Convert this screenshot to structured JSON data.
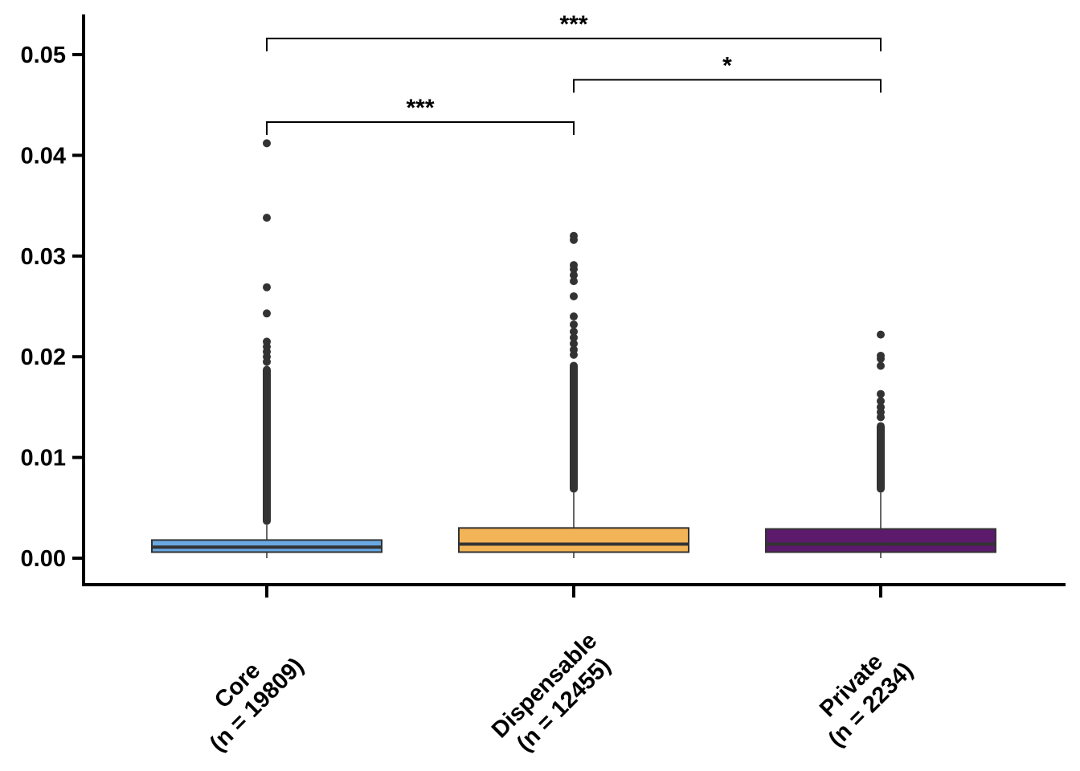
{
  "chart_data": {
    "type": "box",
    "title": "",
    "xlabel": "",
    "ylabel": "",
    "ylim": [
      -0.0025,
      0.0535
    ],
    "yticks": [
      "0.00",
      "0.01",
      "0.02",
      "0.03",
      "0.04",
      "0.05"
    ],
    "ytick_values": [
      0,
      0.01,
      0.02,
      0.03,
      0.04,
      0.05
    ],
    "grid": false,
    "legend": "none",
    "categories": [
      [
        "Core",
        "(n = 19809)"
      ],
      [
        "Dispensable",
        "(n = 12455)"
      ],
      [
        "Private",
        "(n = 2234)"
      ]
    ],
    "boxes": [
      {
        "color": "#69a8e3",
        "whisker_low": 0.0,
        "q1": 0.0006,
        "median": 0.0011,
        "q3": 0.0018,
        "whisker_high": 0.0033,
        "outliers_range": [
          0.0033,
          0.0191
        ],
        "outliers": [
          0.0195,
          0.02,
          0.0205,
          0.021,
          0.0215,
          0.0243,
          0.0269,
          0.0338,
          0.0412
        ]
      },
      {
        "color": "#f2b457",
        "whisker_low": 0.0,
        "q1": 0.0006,
        "median": 0.0014,
        "q3": 0.003,
        "whisker_high": 0.0065,
        "outliers_range": [
          0.0065,
          0.0195
        ],
        "outliers": [
          0.0202,
          0.0207,
          0.0213,
          0.0219,
          0.0225,
          0.0232,
          0.024,
          0.026,
          0.0275,
          0.0281,
          0.0287,
          0.0291,
          0.0316,
          0.032
        ]
      },
      {
        "color": "#5b1a6b",
        "whisker_low": 0.0,
        "q1": 0.0006,
        "median": 0.0014,
        "q3": 0.0029,
        "whisker_high": 0.0065,
        "outliers_range": [
          0.0065,
          0.0135
        ],
        "outliers": [
          0.014,
          0.0145,
          0.015,
          0.0156,
          0.0163,
          0.0191,
          0.0198,
          0.0201,
          0.0222
        ]
      }
    ],
    "significance": [
      {
        "from": 0,
        "to": 1,
        "label": "***",
        "y": 0.0433
      },
      {
        "from": 1,
        "to": 2,
        "label": "*",
        "y": 0.0475
      },
      {
        "from": 0,
        "to": 2,
        "label": "***",
        "y": 0.0516
      }
    ]
  }
}
